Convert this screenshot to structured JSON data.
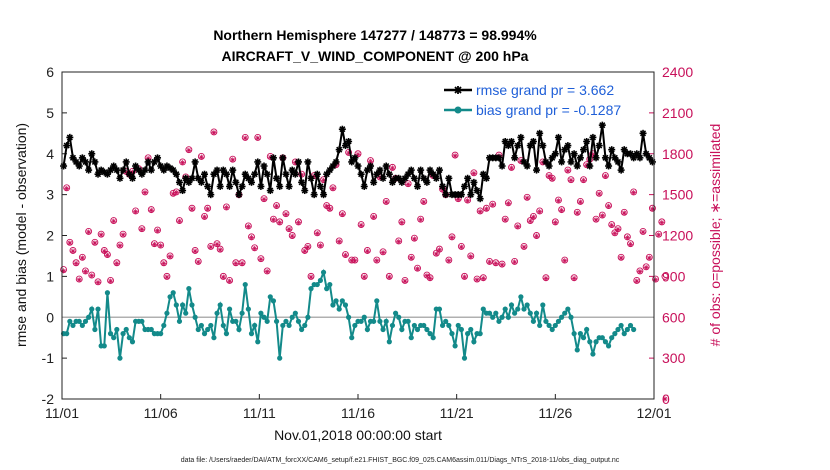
{
  "chart_data": {
    "type": "line",
    "title": "Northern Hemisphere 147277 / 148773 = 98.994%",
    "subtitle": "AIRCRAFT_V_WIND_COMPONENT @ 200 hPa",
    "xlabel": "Nov.01,2018 00:00:00 start",
    "ylabel": "rmse and bias (model - observation)",
    "y2label": "# of obs: o=possible; ∗=assimilated",
    "footnote": "data file: /Users/raeder/DAI/ATM_forcXX/CAM6_setup/f.e21.FHIST_BGC.f09_025.CAM6assim.011/Diags_NTrS_2018-11/obs_diag_output.nc",
    "xlim": [
      0,
      30
    ],
    "ylim": [
      -2,
      6
    ],
    "y2lim": [
      0,
      2400
    ],
    "x_ticks": [
      0,
      5,
      10,
      15,
      20,
      25,
      30
    ],
    "x_tick_labels": [
      "11/01",
      "11/06",
      "11/11",
      "11/16",
      "11/21",
      "11/26",
      "12/01"
    ],
    "y_ticks": [
      -2,
      -1,
      0,
      1,
      2,
      3,
      4,
      5,
      6
    ],
    "y_tick_labels": [
      "-2",
      "-1",
      "0",
      "1",
      "2",
      "3",
      "4",
      "5",
      "6"
    ],
    "y2_ticks": [
      0,
      300,
      600,
      900,
      1200,
      1500,
      1800,
      2100,
      2400
    ],
    "y2_tick_labels": [
      "0",
      "300",
      "600",
      "900",
      "1200",
      "1500",
      "1800",
      "2100",
      "2400"
    ],
    "zero_line": 0,
    "legend_position": "top-right",
    "colors": {
      "rmse": "#000000",
      "bias": "#138a8a",
      "obs": "#c8105a",
      "legend_text": "#1f5fd8",
      "zero_line": "#b0b0b0"
    },
    "series": [
      {
        "name": "rmse grand pr = 3.662",
        "axis": "left",
        "values": [
          3.7,
          4.2,
          4.4,
          3.9,
          3.8,
          3.7,
          3.9,
          3.8,
          3.6,
          4.0,
          3.8,
          3.5,
          3.6,
          3.55,
          3.5,
          3.6,
          3.7,
          3.6,
          3.4,
          3.6,
          3.8,
          3.5,
          3.4,
          3.7,
          3.6,
          3.5,
          3.6,
          3.8,
          3.6,
          3.8,
          3.9,
          3.7,
          3.6,
          3.7,
          3.65,
          3.6,
          3.5,
          3.3,
          3.1,
          3.4,
          3.3,
          3.4,
          3.8,
          3.4,
          3.3,
          3.5,
          3.2,
          3.0,
          3.5,
          3.6,
          3.2,
          3.6,
          3.5,
          3.2,
          3.6,
          3.3,
          3.0,
          3.2,
          3.5,
          3.4,
          3.3,
          3.5,
          3.8,
          3.2,
          3.7,
          3.5,
          3.1,
          3.9,
          3.4,
          3.2,
          3.9,
          3.5,
          3.2,
          3.6,
          3.5,
          3.8,
          3.3,
          3.1,
          3.8,
          3.4,
          3.0,
          3.5,
          3.2,
          3.0,
          3.5,
          3.6,
          3.7,
          3.8,
          4.1,
          4.6,
          4.2,
          4.3,
          3.8,
          3.9,
          3.7,
          3.5,
          3.2,
          3.6,
          3.7,
          3.3,
          3.5,
          3.6,
          3.4,
          3.7,
          3.5,
          3.3,
          3.4,
          3.4,
          3.3,
          3.4,
          3.5,
          3.6,
          3.4,
          3.2,
          3.6,
          3.4,
          3.3,
          3.6,
          3.5,
          3.4,
          3.6,
          3.2,
          3.0,
          3.4,
          3.0,
          3.0,
          3.0,
          3.0,
          3.2,
          3.4,
          3.0,
          3.3,
          3.1,
          2.9,
          3.5,
          3.4,
          3.9,
          3.9,
          3.9,
          3.9,
          3.7,
          4.3,
          4.2,
          4.3,
          3.9,
          4.2,
          4.4,
          3.8,
          3.7,
          4.2,
          4.3,
          3.6,
          4.5,
          4.2,
          3.8,
          3.7,
          3.9,
          4.0,
          4.4,
          3.8,
          4.1,
          4.2,
          3.8,
          4.0,
          3.7,
          3.9,
          4.1,
          4.3,
          3.7,
          4.4,
          3.9,
          4.2,
          4.7,
          3.9,
          3.7,
          4.1,
          3.9,
          3.8,
          3.6,
          4.1,
          4.0,
          4.0,
          3.9,
          4.0,
          3.9,
          4.5,
          4.0,
          3.9,
          3.8
        ]
      },
      {
        "name": "bias grand pr = -0.1287",
        "axis": "left",
        "values": [
          -0.4,
          -0.4,
          -0.1,
          -0.2,
          -0.1,
          -0.1,
          -0.2,
          -0.1,
          0.0,
          0.2,
          -0.3,
          0.2,
          -0.7,
          -0.7,
          0.6,
          -0.4,
          -0.5,
          -0.3,
          -1.0,
          -0.4,
          -0.3,
          -0.5,
          -0.6,
          -0.1,
          -0.1,
          -0.1,
          -0.3,
          -0.3,
          -0.3,
          -0.4,
          -0.4,
          -0.4,
          -0.2,
          0.1,
          0.5,
          0.6,
          0.3,
          -0.1,
          0.3,
          0.1,
          0.7,
          0.3,
          0.0,
          -0.3,
          -0.2,
          -0.4,
          -0.3,
          -0.2,
          -0.5,
          0.1,
          0.3,
          -0.2,
          -0.4,
          0.2,
          -0.1,
          -0.1,
          -0.3,
          0.1,
          0.8,
          0.2,
          -0.4,
          -0.2,
          -0.6,
          0.1,
          0.0,
          -0.1,
          0.5,
          0.4,
          -0.1,
          -1.0,
          -0.2,
          -0.1,
          -0.2,
          0.0,
          0.1,
          -0.1,
          -0.3,
          -0.2,
          0.0,
          0.7,
          0.8,
          0.8,
          0.9,
          1.1,
          0.7,
          0.8,
          0.3,
          0.4,
          0.2,
          0.4,
          0.3,
          0.0,
          -0.5,
          -0.2,
          -0.1,
          -0.1,
          0.0,
          -0.3,
          -0.1,
          -0.1,
          0.4,
          -0.1,
          -0.3,
          -0.1,
          -0.6,
          -0.2,
          0.1,
          0.0,
          -0.3,
          -0.1,
          -0.1,
          -0.5,
          -0.2,
          -0.3,
          -0.2,
          -0.2,
          -0.3,
          -0.4,
          -0.5,
          0.2,
          0.2,
          -0.2,
          -0.1,
          -0.2,
          -0.4,
          -0.7,
          -0.2,
          -0.3,
          -1.0,
          -0.4,
          -0.3,
          -0.6,
          -0.4,
          -0.4,
          0.2,
          0.1,
          0.1,
          0.0,
          0.1,
          -0.1,
          0.0,
          0.2,
          0.0,
          0.3,
          0.1,
          0.2,
          0.5,
          0.2,
          0.3,
          0.1,
          -0.1,
          0.1,
          -0.2,
          0.3,
          -0.1,
          -0.2,
          -0.3,
          -0.2,
          -0.1,
          0.0,
          0.1,
          0.2,
          0.0,
          -0.4,
          -0.8,
          -0.4,
          -0.5,
          -0.3,
          -0.6,
          -0.9,
          -0.6,
          -0.5,
          -0.5,
          -0.6,
          -0.7,
          -0.5,
          -0.4,
          -0.3,
          -0.2,
          -0.4,
          -0.3,
          -0.2,
          -0.3
        ]
      }
    ],
    "obs_possible": [
      950,
      1550,
      1150,
      1090,
      1000,
      880,
      1040,
      940,
      1230,
      910,
      1150,
      860,
      1210,
      1090,
      1060,
      870,
      1310,
      1000,
      1130,
      1210,
      1670,
      1650,
      1670,
      1380,
      1690,
      1250,
      1520,
      1770,
      1390,
      1140,
      1240,
      1130,
      1000,
      900,
      1050,
      1510,
      1520,
      1310,
      1740,
      1630,
      1830,
      1400,
      1090,
      1010,
      1780,
      1340,
      1400,
      1120,
      1960,
      1140,
      1100,
      900,
      1410,
      870,
      1760,
      1000,
      1500,
      1000,
      1920,
      1270,
      1190,
      1110,
      1920,
      1030,
      1470,
      940,
      1780,
      1320,
      1420,
      1300,
      1770,
      1360,
      1250,
      1200,
      1740,
      1300,
      1650,
      1090,
      1120,
      900,
      1640,
      1220,
      1130,
      1610,
      1420,
      1400,
      1550,
      1720,
      1160,
      1360,
      1060,
      1810,
      1020,
      1020,
      1800,
      1280,
      900,
      1090,
      1750,
      1340,
      1020,
      1630,
      1080,
      1450,
      900,
      1700,
      1620,
      1160,
      1300,
      870,
      1580,
      1040,
      1180,
      960,
      1320,
      1450,
      910,
      890,
      1640,
      1070,
      1100,
      1540,
      1500,
      1020,
      1190,
      1790,
      1470,
      1120,
      900,
      1460,
      1050,
      1660,
      880,
      1380,
      890,
      1400,
      1010,
      1430,
      1000,
      1790,
      990,
      1320,
      1440,
      1700,
      1010,
      1270,
      1750,
      1120,
      1480,
      1310,
      1340,
      1200,
      1380,
      1740,
      890,
      1640,
      1620,
      1300,
      1460,
      1390,
      1020,
      1680,
      1610,
      890,
      1370,
      1450,
      1610,
      1720,
      1760,
      1800,
      1320,
      1510,
      1350,
      1640,
      1420,
      1280,
      1220,
      1250,
      1040,
      1370,
      1190,
      1140,
      1520,
      870,
      940,
      1230,
      970,
      1040,
      1400,
      880,
      1210,
      1300,
      900
    ],
    "obs_assimilated": [
      940,
      1545,
      1145,
      1085,
      995,
      875,
      1035,
      935,
      1225,
      905,
      1145,
      855,
      1205,
      1085,
      1055,
      865,
      1305,
      995,
      1125,
      1205,
      1665,
      1645,
      1665,
      1375,
      1685,
      1245,
      1515,
      1765,
      1385,
      1135,
      1235,
      1125,
      995,
      895,
      1045,
      1505,
      1515,
      1305,
      1735,
      1625,
      1825,
      1395,
      1085,
      1005,
      1775,
      1335,
      1395,
      1115,
      1955,
      1135,
      1095,
      895,
      1405,
      865,
      1755,
      995,
      1495,
      995,
      1915,
      1265,
      1185,
      1105,
      1915,
      1025,
      1465,
      935,
      1775,
      1315,
      1415,
      1295,
      1765,
      1355,
      1245,
      1195,
      1735,
      1295,
      1645,
      1085,
      1115,
      895,
      1635,
      1215,
      1125,
      1605,
      1415,
      1395,
      1545,
      1715,
      1155,
      1355,
      1055,
      1805,
      1015,
      1015,
      1795,
      1275,
      895,
      1085,
      1745,
      1335,
      1015,
      1625,
      1075,
      1445,
      895,
      1695,
      1615,
      1155,
      1295,
      865,
      1575,
      1035,
      1175,
      955,
      1315,
      1445,
      905,
      885,
      1635,
      1065,
      1095,
      1535,
      1495,
      1015,
      1185,
      1785,
      1465,
      1115,
      895,
      1455,
      1045,
      1655,
      875,
      1375,
      885,
      1395,
      1005,
      1425,
      995,
      1785,
      985,
      1315,
      1435,
      1695,
      1005,
      1265,
      1745,
      1115,
      1475,
      1305,
      1335,
      1195,
      1375,
      1735,
      885,
      1635,
      1615,
      1295,
      1455,
      1385,
      1015,
      1675,
      1605,
      885,
      1365,
      1445,
      1605,
      1715,
      1755,
      1795,
      1315,
      1505,
      1345,
      1635,
      1415,
      1275,
      1215,
      1245,
      1035,
      1365,
      1185,
      1135,
      1515,
      865,
      935,
      1225,
      965,
      1035,
      1395,
      875,
      1205,
      1295,
      0
    ]
  }
}
